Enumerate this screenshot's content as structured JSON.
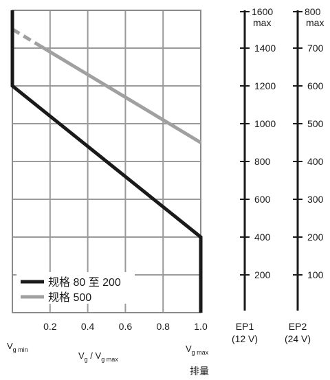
{
  "chart_data": {
    "type": "line",
    "x_ticks": [
      "0.2",
      "0.4",
      "0.6",
      "0.8",
      "1.0"
    ],
    "x_range": [
      0.03,
      1.0
    ],
    "y_range": [
      0,
      1600
    ],
    "grid": true,
    "legend_position": "bottom-left",
    "axis_labels": {
      "vg_min_main": "V",
      "vg_min_sub": "g min",
      "ratio_v1": "V",
      "ratio_sub1": "g",
      "ratio_sep": " / V",
      "ratio_sub2": "g max",
      "vg_max_main": "V",
      "vg_max_sub": "g max",
      "x_title": "排量"
    },
    "series": [
      {
        "name": "规格 80 至 200",
        "color": "#1a1a1a",
        "points": [
          [
            0.03,
            1600
          ],
          [
            0.03,
            1200
          ],
          [
            1.0,
            400
          ],
          [
            1.0,
            0
          ]
        ]
      },
      {
        "name": "规格 500",
        "color": "#a0a0a0",
        "points": [
          [
            0.03,
            1500
          ],
          [
            1.0,
            900
          ]
        ],
        "dashed_until_x": 0.17
      }
    ],
    "ep_scales": [
      {
        "name": "EP1",
        "unit": "(12 V)",
        "top_label": "1600",
        "top_sub": "max",
        "ticks": [
          {
            "value": 1400,
            "label": "1400"
          },
          {
            "value": 1200,
            "label": "1200"
          },
          {
            "value": 1000,
            "label": "1000"
          },
          {
            "value": 800,
            "label": "800"
          },
          {
            "value": 600,
            "label": "600"
          },
          {
            "value": 400,
            "label": "400"
          },
          {
            "value": 200,
            "label": "200"
          }
        ]
      },
      {
        "name": "EP2",
        "unit": "(24 V)",
        "top_label": "800",
        "top_sub": "max",
        "ticks": [
          {
            "value": 1400,
            "label": "700"
          },
          {
            "value": 1200,
            "label": "600"
          },
          {
            "value": 1000,
            "label": "500"
          },
          {
            "value": 800,
            "label": "400"
          },
          {
            "value": 600,
            "label": "300"
          },
          {
            "value": 400,
            "label": "200"
          },
          {
            "value": 200,
            "label": "100"
          }
        ]
      }
    ]
  }
}
